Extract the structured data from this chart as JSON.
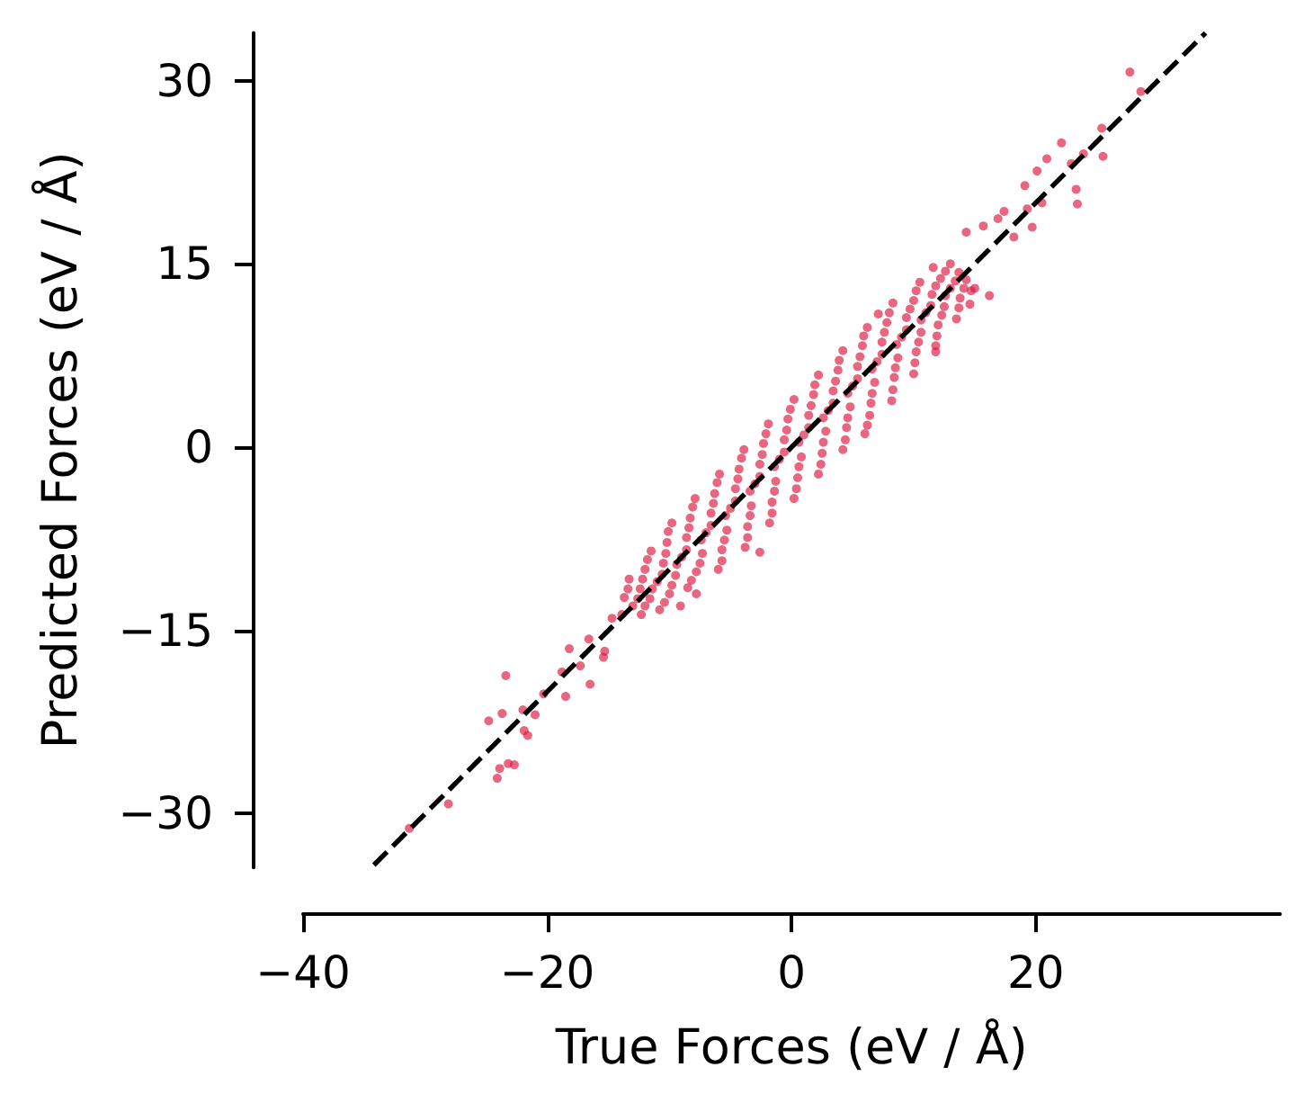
{
  "chart_data": {
    "type": "scatter",
    "xlabel": "True Forces (eV / Å)",
    "ylabel": "Predicted Forces (eV / Å)",
    "xlim": [
      -40,
      40
    ],
    "ylim": [
      -34.4,
      33.9
    ],
    "xticks": [
      {
        "value": -40,
        "label": "−40"
      },
      {
        "value": -20,
        "label": "−20"
      },
      {
        "value": 0,
        "label": "0"
      },
      {
        "value": 20,
        "label": "20"
      }
    ],
    "yticks": [
      {
        "value": -30,
        "label": "−30"
      },
      {
        "value": -15,
        "label": "−15"
      },
      {
        "value": 0,
        "label": "0"
      },
      {
        "value": 15,
        "label": "15"
      },
      {
        "value": 30,
        "label": "30"
      }
    ],
    "grid": false,
    "series": [
      {
        "color": "#dc143c",
        "marker": "circle",
        "x": [
          -13.7,
          -13,
          -12.3,
          -13.3,
          -12.4,
          -11.6,
          -10.8,
          -12,
          -11,
          -10,
          -11.5,
          -10.5,
          -9.5,
          -8.5,
          -10.2,
          -9,
          -7.8,
          -9.8,
          -8.6,
          -7.3,
          -6,
          -8.3,
          -7,
          -5.7,
          -7.9,
          -6.6,
          -5.3,
          -3.8,
          -6.3,
          -5,
          -3.6,
          -5.9,
          -4.6,
          -3.3,
          -1.8,
          -4.3,
          -3,
          -1.6,
          -3.9,
          -2.6,
          -1.3,
          0.2,
          -2.3,
          -1,
          0.5,
          -1.9,
          -0.6,
          0.8,
          2.2,
          -0.3,
          1,
          2.5,
          0.2,
          1.4,
          2.8,
          4.2,
          1.8,
          3,
          4.5,
          2.2,
          3.4,
          4.8,
          6.2,
          3.8,
          5,
          6.5,
          4.2,
          5.4,
          6.8,
          8.2,
          5.8,
          7,
          8.4,
          6.2,
          7.4,
          8.7,
          10,
          7.8,
          9,
          10.2,
          8.3,
          9.4,
          10.6,
          11.8,
          10,
          11,
          12,
          10.5,
          11.5,
          12.5,
          13.5,
          12.2,
          13,
          13.8,
          13,
          13.7,
          14.3,
          15,
          27.7,
          28.6,
          25.4,
          25.5,
          22.1,
          20.9,
          22.9,
          23.9,
          20.1,
          19.1,
          23.4,
          23.3,
          20.5,
          19.7,
          19.3,
          16.9,
          15.7,
          14.3,
          16.2,
          14.6,
          11.8,
          7.1,
          6.0,
          11.6,
          18.2,
          17.4,
          14.7,
          -31.3,
          -28.1,
          -24.1,
          -23.9,
          -23.2,
          -22.7,
          -24.8,
          -23.7,
          -23.4,
          -21.9,
          -21.6,
          -22.0,
          -21.0,
          -20.3,
          -18.5,
          -18.2,
          -16.5,
          -16.6,
          -15.4,
          -17.3,
          -18.8,
          -13.9,
          -7.8,
          -2.6,
          -15.3,
          -14.7,
          -9.1,
          -13.4,
          -12.6,
          -12,
          -11.8,
          -10.6,
          -9.8,
          -10.1,
          -8.6,
          -7.5,
          -8.1,
          -6.6,
          -5.5,
          -6.1,
          -4.6,
          -3.4,
          -4.1,
          -2.6,
          -1.4,
          -2.1,
          -0.6,
          0.6,
          -0.1,
          1.4,
          2.6,
          1.9,
          3.4,
          4.6,
          3.9,
          5.4,
          6.6,
          5.9,
          7.4,
          8.5,
          8,
          9.4,
          10.4,
          10.2,
          11.4,
          12.3,
          12.6,
          13.4,
          14.1,
          -12.2,
          -11.4,
          -10.4,
          -10.3,
          -9.4,
          -8.2,
          -8.4,
          -7.4,
          -5.7,
          -6.4,
          -5.4,
          -3.6,
          -4.4,
          -3.4,
          -1.6,
          -2.4,
          -1.4,
          0.4,
          -0.4,
          0.6,
          2.4,
          1.6,
          2.6,
          4.4,
          3.6,
          4.6,
          6.4,
          5.6,
          6.6,
          8.3,
          7.6,
          8.6,
          10.1,
          9.7,
          10.6,
          11.9,
          11.8,
          12.6,
          13.7
        ],
        "values": [
          -12.3,
          -13,
          -13.7,
          -10.8,
          -11.6,
          -12.4,
          -13.3,
          -10,
          -11,
          -12,
          -8.5,
          -9.5,
          -10.5,
          -11.5,
          -7.8,
          -9,
          -10.2,
          -6.2,
          -7.4,
          -8.7,
          -10,
          -5.8,
          -7,
          -8.4,
          -4.2,
          -5.4,
          -6.8,
          -8.2,
          -3.8,
          -5,
          -6.5,
          -2.2,
          -3.4,
          -4.8,
          -6.2,
          -1.8,
          -3,
          -4.5,
          -0.2,
          -1.4,
          -2.8,
          -4.2,
          0.3,
          -1,
          -2.5,
          1.9,
          0.6,
          -0.8,
          -2.2,
          2.3,
          1,
          -0.5,
          3.9,
          2.6,
          1.3,
          -0.2,
          4.3,
          3,
          1.6,
          5.9,
          4.6,
          3.3,
          1.8,
          6.3,
          5,
          3.6,
          7.9,
          6.6,
          5.3,
          3.8,
          8.3,
          7,
          5.7,
          9.8,
          8.6,
          7.3,
          6,
          10.2,
          9,
          7.8,
          11.8,
          10.6,
          9.4,
          8.3,
          12,
          11,
          10,
          13.5,
          12.5,
          11.5,
          10.5,
          13.8,
          13,
          12.2,
          15,
          14.3,
          13.7,
          13,
          30.7,
          29.1,
          26.1,
          23.8,
          24.9,
          23.6,
          23.2,
          24.0,
          22.6,
          21.4,
          19.9,
          21.1,
          20.0,
          18.0,
          19.5,
          18.7,
          18.1,
          17.6,
          12.4,
          11.7,
          7.8,
          10.9,
          1.1,
          14.7,
          17.2,
          19.3,
          12.8,
          -31.2,
          -29.2,
          -27.1,
          -26.3,
          -25.9,
          -26.0,
          -22.4,
          -21.8,
          -18.7,
          -23.2,
          -23.6,
          -21.5,
          -21.9,
          -20.2,
          -20.4,
          -16.5,
          -19.4,
          -15.7,
          -17.2,
          -17.9,
          -18.4,
          -13.7,
          -12.0,
          -8.6,
          -16.7,
          -14.0,
          -13.0,
          -11.6,
          -12.4,
          -13,
          -9.2,
          -10.4,
          -11.3,
          -6.9,
          -8.4,
          -9.5,
          -4.9,
          -6.4,
          -7.6,
          -2.9,
          -4.4,
          -5.6,
          -0.9,
          -2.4,
          -3.6,
          1.1,
          -0.4,
          -1.6,
          3.1,
          1.6,
          0.4,
          5.1,
          3.6,
          2.4,
          7.1,
          5.6,
          4.4,
          9.1,
          7.6,
          6.5,
          11,
          9.6,
          8.6,
          12.8,
          11.6,
          10.8,
          14.4,
          13.6,
          13,
          -10.8,
          -11.6,
          -12.7,
          -8.7,
          -9.6,
          -10.9,
          -6.6,
          -7.6,
          -9.3,
          -4.6,
          -5.6,
          -7.4,
          -2.6,
          -3.6,
          -5.4,
          -0.6,
          -1.6,
          -3.4,
          1.4,
          0.4,
          -1.4,
          3.4,
          2.4,
          0.6,
          5.4,
          4.4,
          2.6,
          7.4,
          6.4,
          4.7,
          9.4,
          8.4,
          6.9,
          11.3,
          10.4,
          9.1,
          13.2,
          12.4,
          11.4
        ]
      },
      {
        "type": "line",
        "color": "#000000",
        "marker": "none",
        "line_style": "dashed",
        "x": [
          -34.2,
          33.9
        ],
        "values": [
          -34.2,
          33.9
        ]
      }
    ]
  }
}
